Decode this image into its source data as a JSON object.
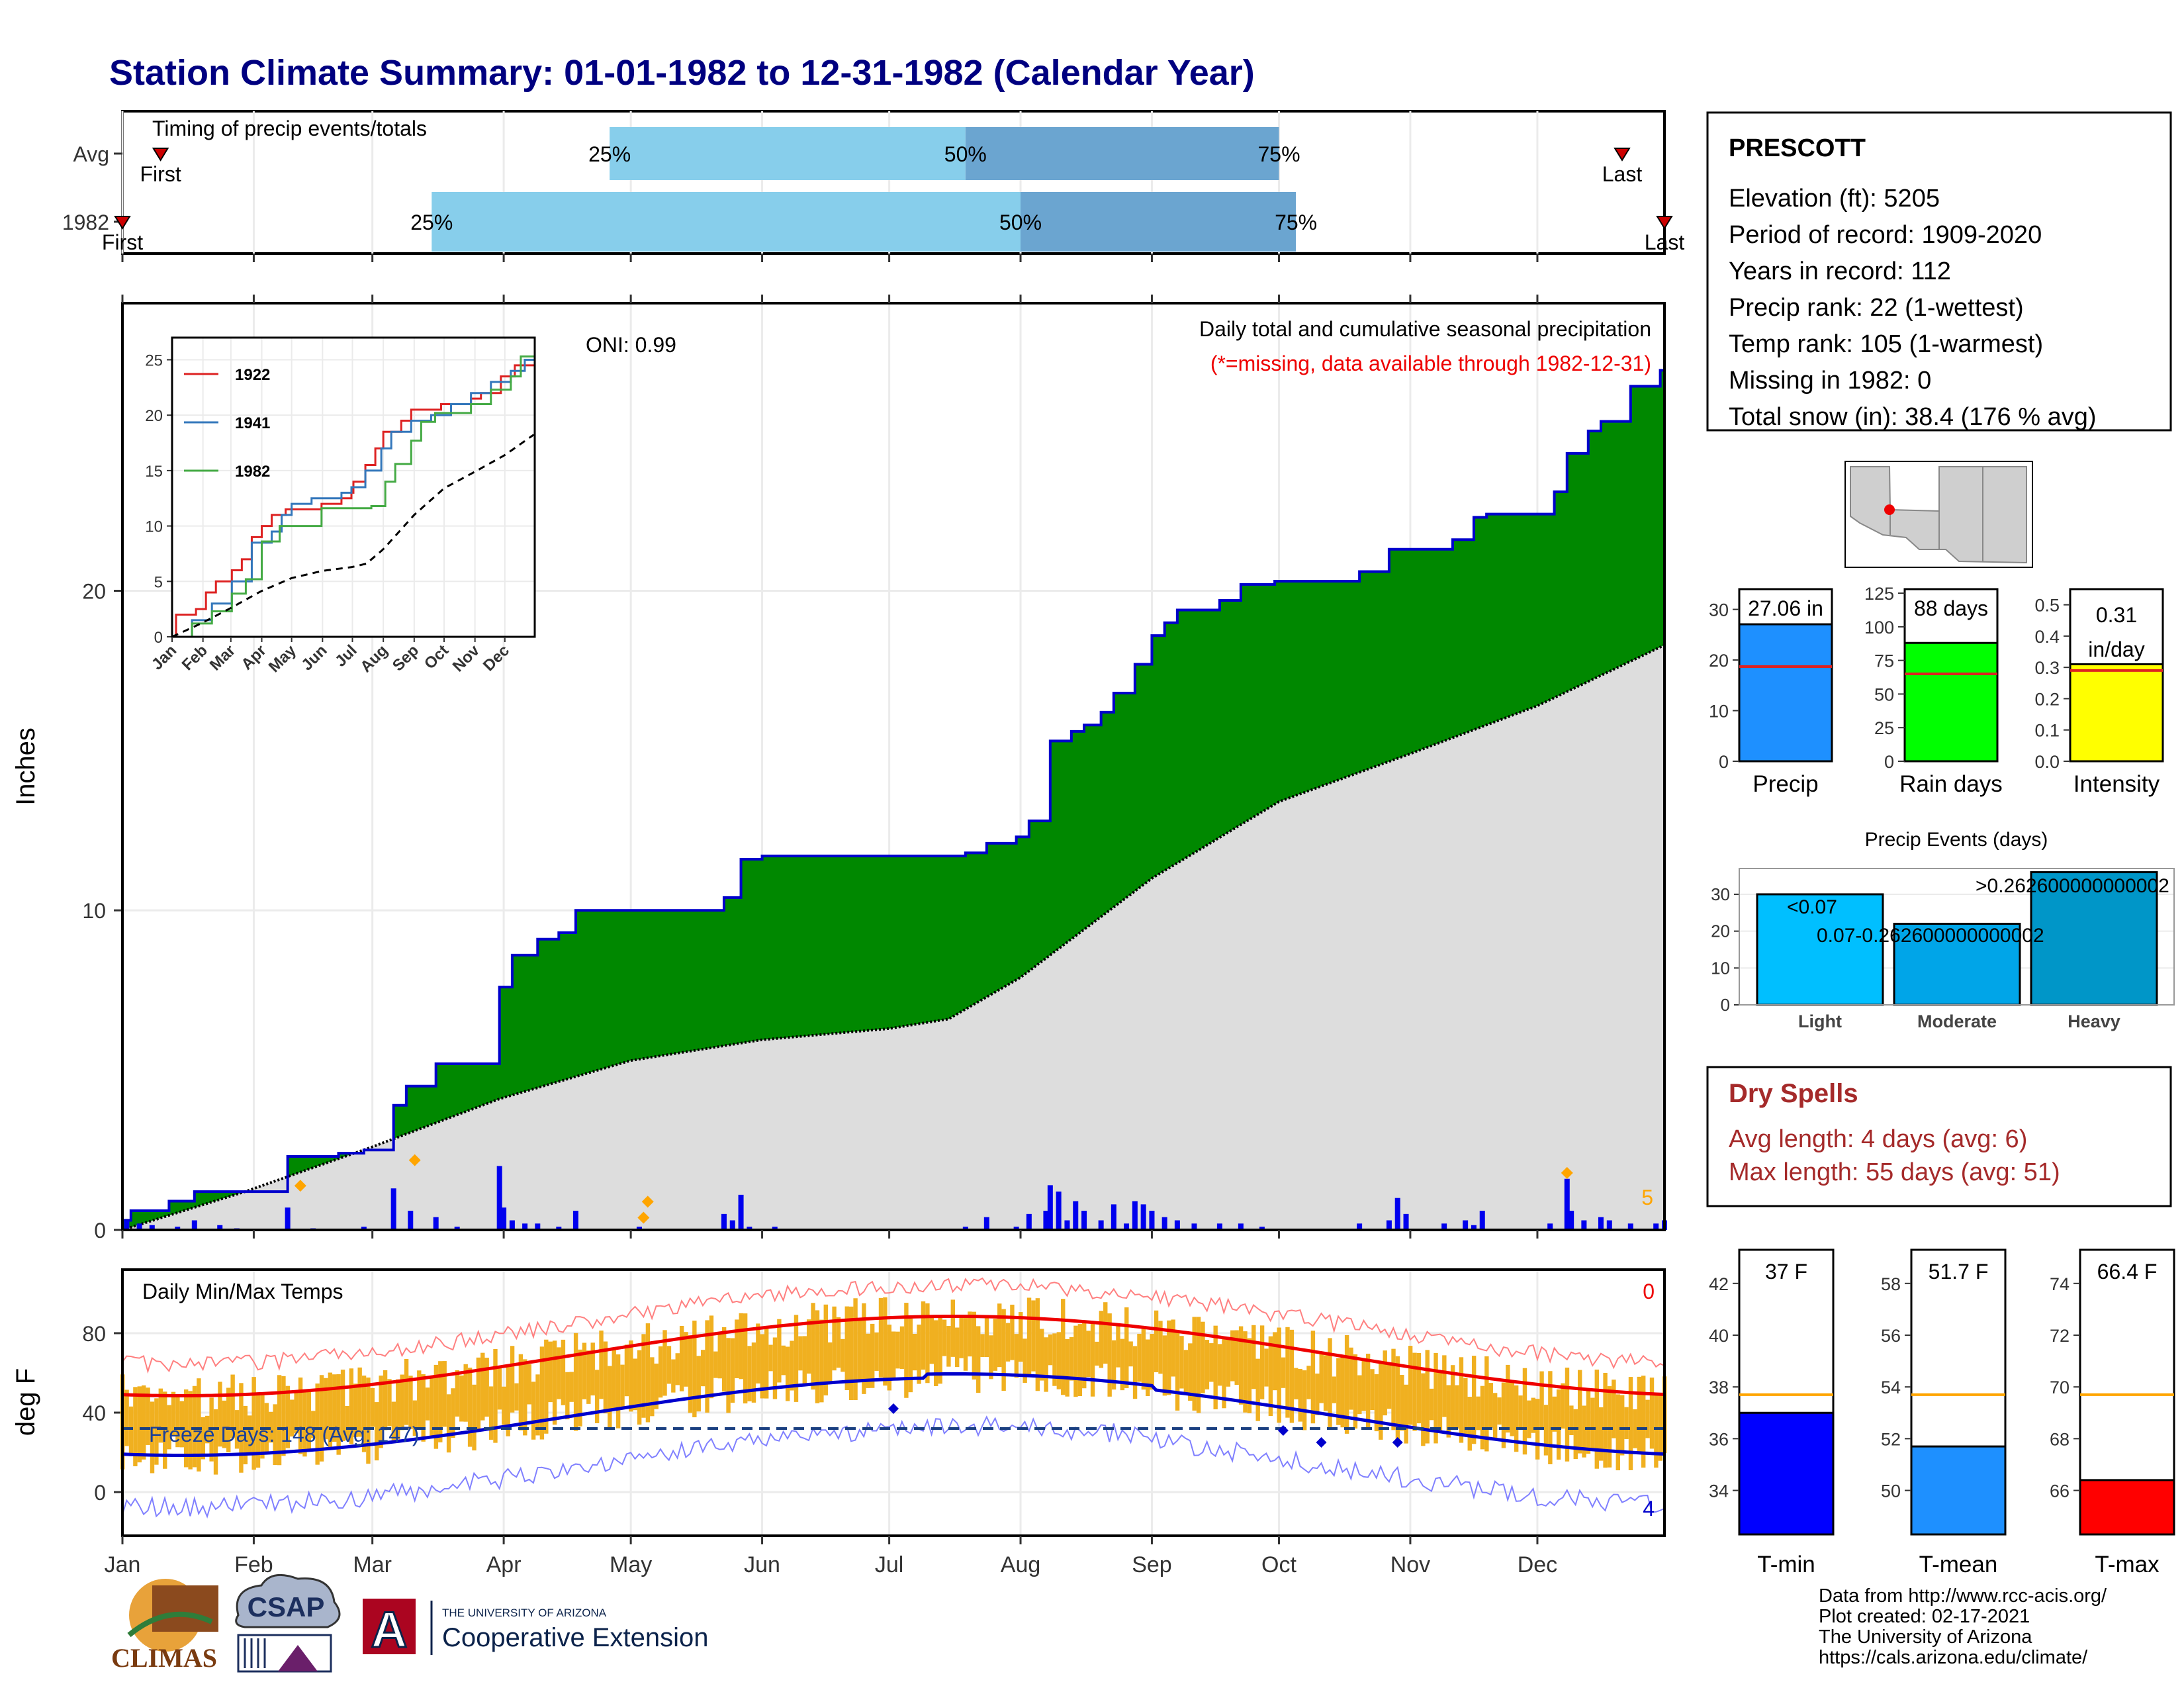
{
  "title": "Station Climate Summary: 01-01-1982 to 12-31-1982 (Calendar Year)",
  "timing": {
    "label": "Timing of precip events/totals",
    "rows": [
      "Avg",
      "1982"
    ],
    "pct_labels": [
      "25%",
      "50%",
      "75%"
    ],
    "first": "First",
    "last": "Last",
    "avg": {
      "first_doy": 10,
      "last_doy": 355,
      "p25": 116,
      "p50": 200,
      "p75": 274
    },
    "y1982": {
      "first_doy": 1,
      "last_doy": 365,
      "p25": 74,
      "p50": 213,
      "p75": 278
    }
  },
  "month_labels": [
    "Jan",
    "Feb",
    "Mar",
    "Apr",
    "May",
    "Jun",
    "Jul",
    "Aug",
    "Sep",
    "Oct",
    "Nov",
    "Dec"
  ],
  "month_start_doy": [
    1,
    32,
    60,
    91,
    121,
    152,
    182,
    213,
    244,
    274,
    305,
    335
  ],
  "main": {
    "ylabel": "Inches",
    "yticks": [
      0,
      10,
      20
    ],
    "ylim": [
      0,
      29
    ],
    "oni": "ONI: 0.99",
    "heading": "Daily total and cumulative seasonal precipitation",
    "missing_note": "(*=missing, data available through 1982-12-31)",
    "corner_count": "5",
    "colors": {
      "cum_fill": "#008800",
      "cum_line": "#0000cc",
      "avg_fill": "#dddddd",
      "daily": "#0000ee",
      "marker": "#ffa500"
    }
  },
  "inset": {
    "yticks": [
      0,
      5,
      10,
      15,
      20,
      25
    ],
    "ylim": [
      0,
      27
    ],
    "legend": [
      "1922",
      "1941",
      "1982"
    ],
    "colors": [
      "#dd2222",
      "#3377bb",
      "#44aa44"
    ]
  },
  "temps": {
    "ylabel": "deg F",
    "label": "Daily Min/Max Temps",
    "yticks": [
      0,
      40,
      80
    ],
    "ylim": [
      -22,
      112
    ],
    "freeze_label": "Freeze Days: 148 (Avg: 147)",
    "freeze_temp": 32,
    "count_red": "0",
    "count_blue": "4"
  },
  "station": {
    "name": "PRESCOTT",
    "lines": [
      "Elevation (ft): 5205",
      "Period of record: 1909-2020",
      "Years in record: 112",
      "Precip rank: 22 (1-wettest)",
      "Temp rank: 105 (1-warmest)",
      "Missing in 1982: 0",
      "Total snow (in): 38.4 (176 % avg)"
    ]
  },
  "summary_bars": [
    {
      "label": "Precip",
      "value_text": "27.06 in",
      "value": 27.06,
      "avg": 18.7,
      "yticks": [
        0,
        10,
        20,
        30
      ],
      "ymax": 34,
      "color": "#1e90ff"
    },
    {
      "label": "Rain days",
      "value_text": "88 days",
      "value": 88,
      "avg": 65,
      "yticks": [
        0,
        25,
        50,
        75,
        100,
        125
      ],
      "ymax": 128,
      "color": "#00ff00"
    },
    {
      "label": "Intensity",
      "value_text": "0.31 in/day",
      "value": 0.31,
      "avg": 0.29,
      "yticks": [
        0.0,
        0.1,
        0.2,
        0.3,
        0.4,
        0.5
      ],
      "ymax": 0.55,
      "color": "#ffff00"
    }
  ],
  "precip_events": {
    "title": "Precip Events (days)",
    "categories": [
      "Light",
      "Moderate",
      "Heavy"
    ],
    "range_labels": [
      "<0.07",
      "0.07-0.262600000000002",
      ">0.262600000000002"
    ],
    "values": [
      30,
      22,
      36
    ],
    "yticks": [
      0,
      10,
      20,
      30
    ],
    "ymax": 37,
    "colors": [
      "#00bfff",
      "#00a5e8",
      "#0096c8"
    ]
  },
  "dry_spells": {
    "title": "Dry Spells",
    "avg_length": "Avg length: 4 days (avg: 6)",
    "max_length": "Max length: 55 days (avg: 51)"
  },
  "temp_bars": [
    {
      "label": "T-min",
      "value_text": "37 F",
      "value": 37,
      "avg": 37.7,
      "yticks": [
        34,
        36,
        38,
        40,
        42
      ],
      "ylim": [
        32.3,
        43.3
      ],
      "color": "#0000ff"
    },
    {
      "label": "T-mean",
      "value_text": "51.7 F",
      "value": 51.7,
      "avg": 53.7,
      "yticks": [
        50,
        52,
        54,
        56,
        58
      ],
      "ylim": [
        48.3,
        59.3
      ],
      "color": "#1e90ff"
    },
    {
      "label": "T-max",
      "value_text": "66.4 F",
      "value": 66.4,
      "avg": 69.7,
      "yticks": [
        66,
        68,
        70,
        72,
        74
      ],
      "ylim": [
        64.3,
        75.3
      ],
      "color": "#ff0000"
    }
  ],
  "footer": {
    "lines": [
      "Data from http://www.rcc-acis.org/",
      "Plot created: 02-17-2021",
      "The University of Arizona",
      "https://cals.arizona.edu/climate/"
    ],
    "logo_climas": "CLIMAS",
    "logo_csap": "CSAP",
    "logo_ua_small": "THE UNIVERSITY OF ARIZONA",
    "logo_ua_big": "Cooperative Extension",
    "logo_ua_letter": "A"
  }
}
